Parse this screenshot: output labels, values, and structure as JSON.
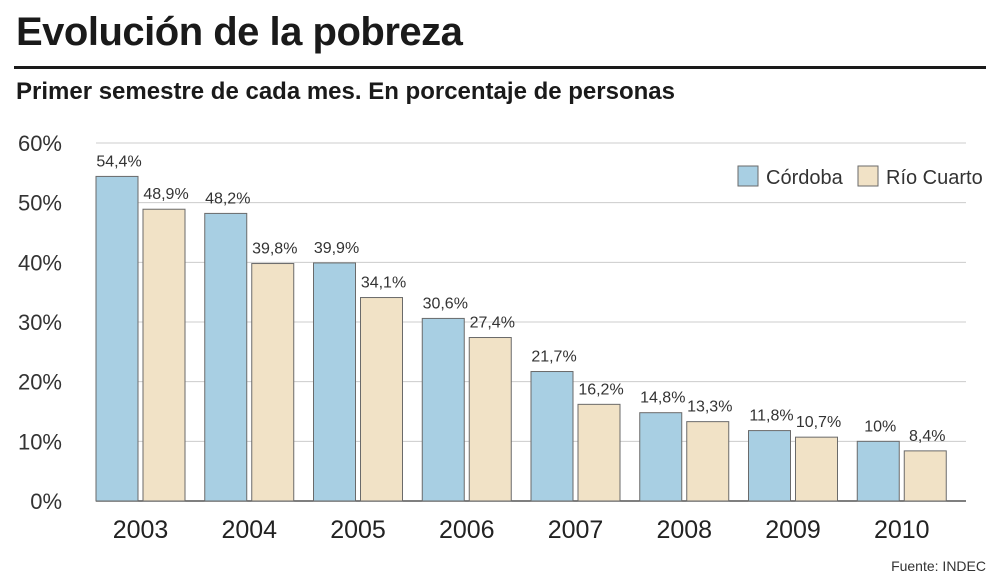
{
  "chart_data": {
    "type": "bar",
    "title": "Evolución de la pobreza",
    "subtitle": "Primer semestre de cada mes. En porcentaje de personas",
    "categories": [
      "2003",
      "2004",
      "2005",
      "2006",
      "2007",
      "2008",
      "2009",
      "2010"
    ],
    "series": [
      {
        "name": "Córdoba",
        "color": "#a8cfe3",
        "values": [
          54.4,
          48.2,
          39.9,
          30.6,
          21.7,
          14.8,
          11.8,
          10
        ],
        "labels": [
          "54,4%",
          "48,2%",
          "39,9%",
          "30,6%",
          "21,7%",
          "14,8%",
          "11,8%",
          "10%"
        ]
      },
      {
        "name": "Río Cuarto",
        "color": "#f1e2c6",
        "values": [
          48.9,
          39.8,
          34.1,
          27.4,
          16.2,
          13.3,
          10.7,
          8.4
        ],
        "labels": [
          "48,9%",
          "39,8%",
          "34,1%",
          "27,4%",
          "16,2%",
          "13,3%",
          "10,7%",
          "8,4%"
        ]
      }
    ],
    "ylim": [
      0,
      60
    ],
    "yticks": [
      0,
      10,
      20,
      30,
      40,
      50,
      60
    ],
    "ytick_labels": [
      "0%",
      "10%",
      "20%",
      "30%",
      "40%",
      "50%",
      "60%"
    ],
    "grid": true,
    "legend_position": "top-right",
    "source": "Fuente: INDEC"
  }
}
